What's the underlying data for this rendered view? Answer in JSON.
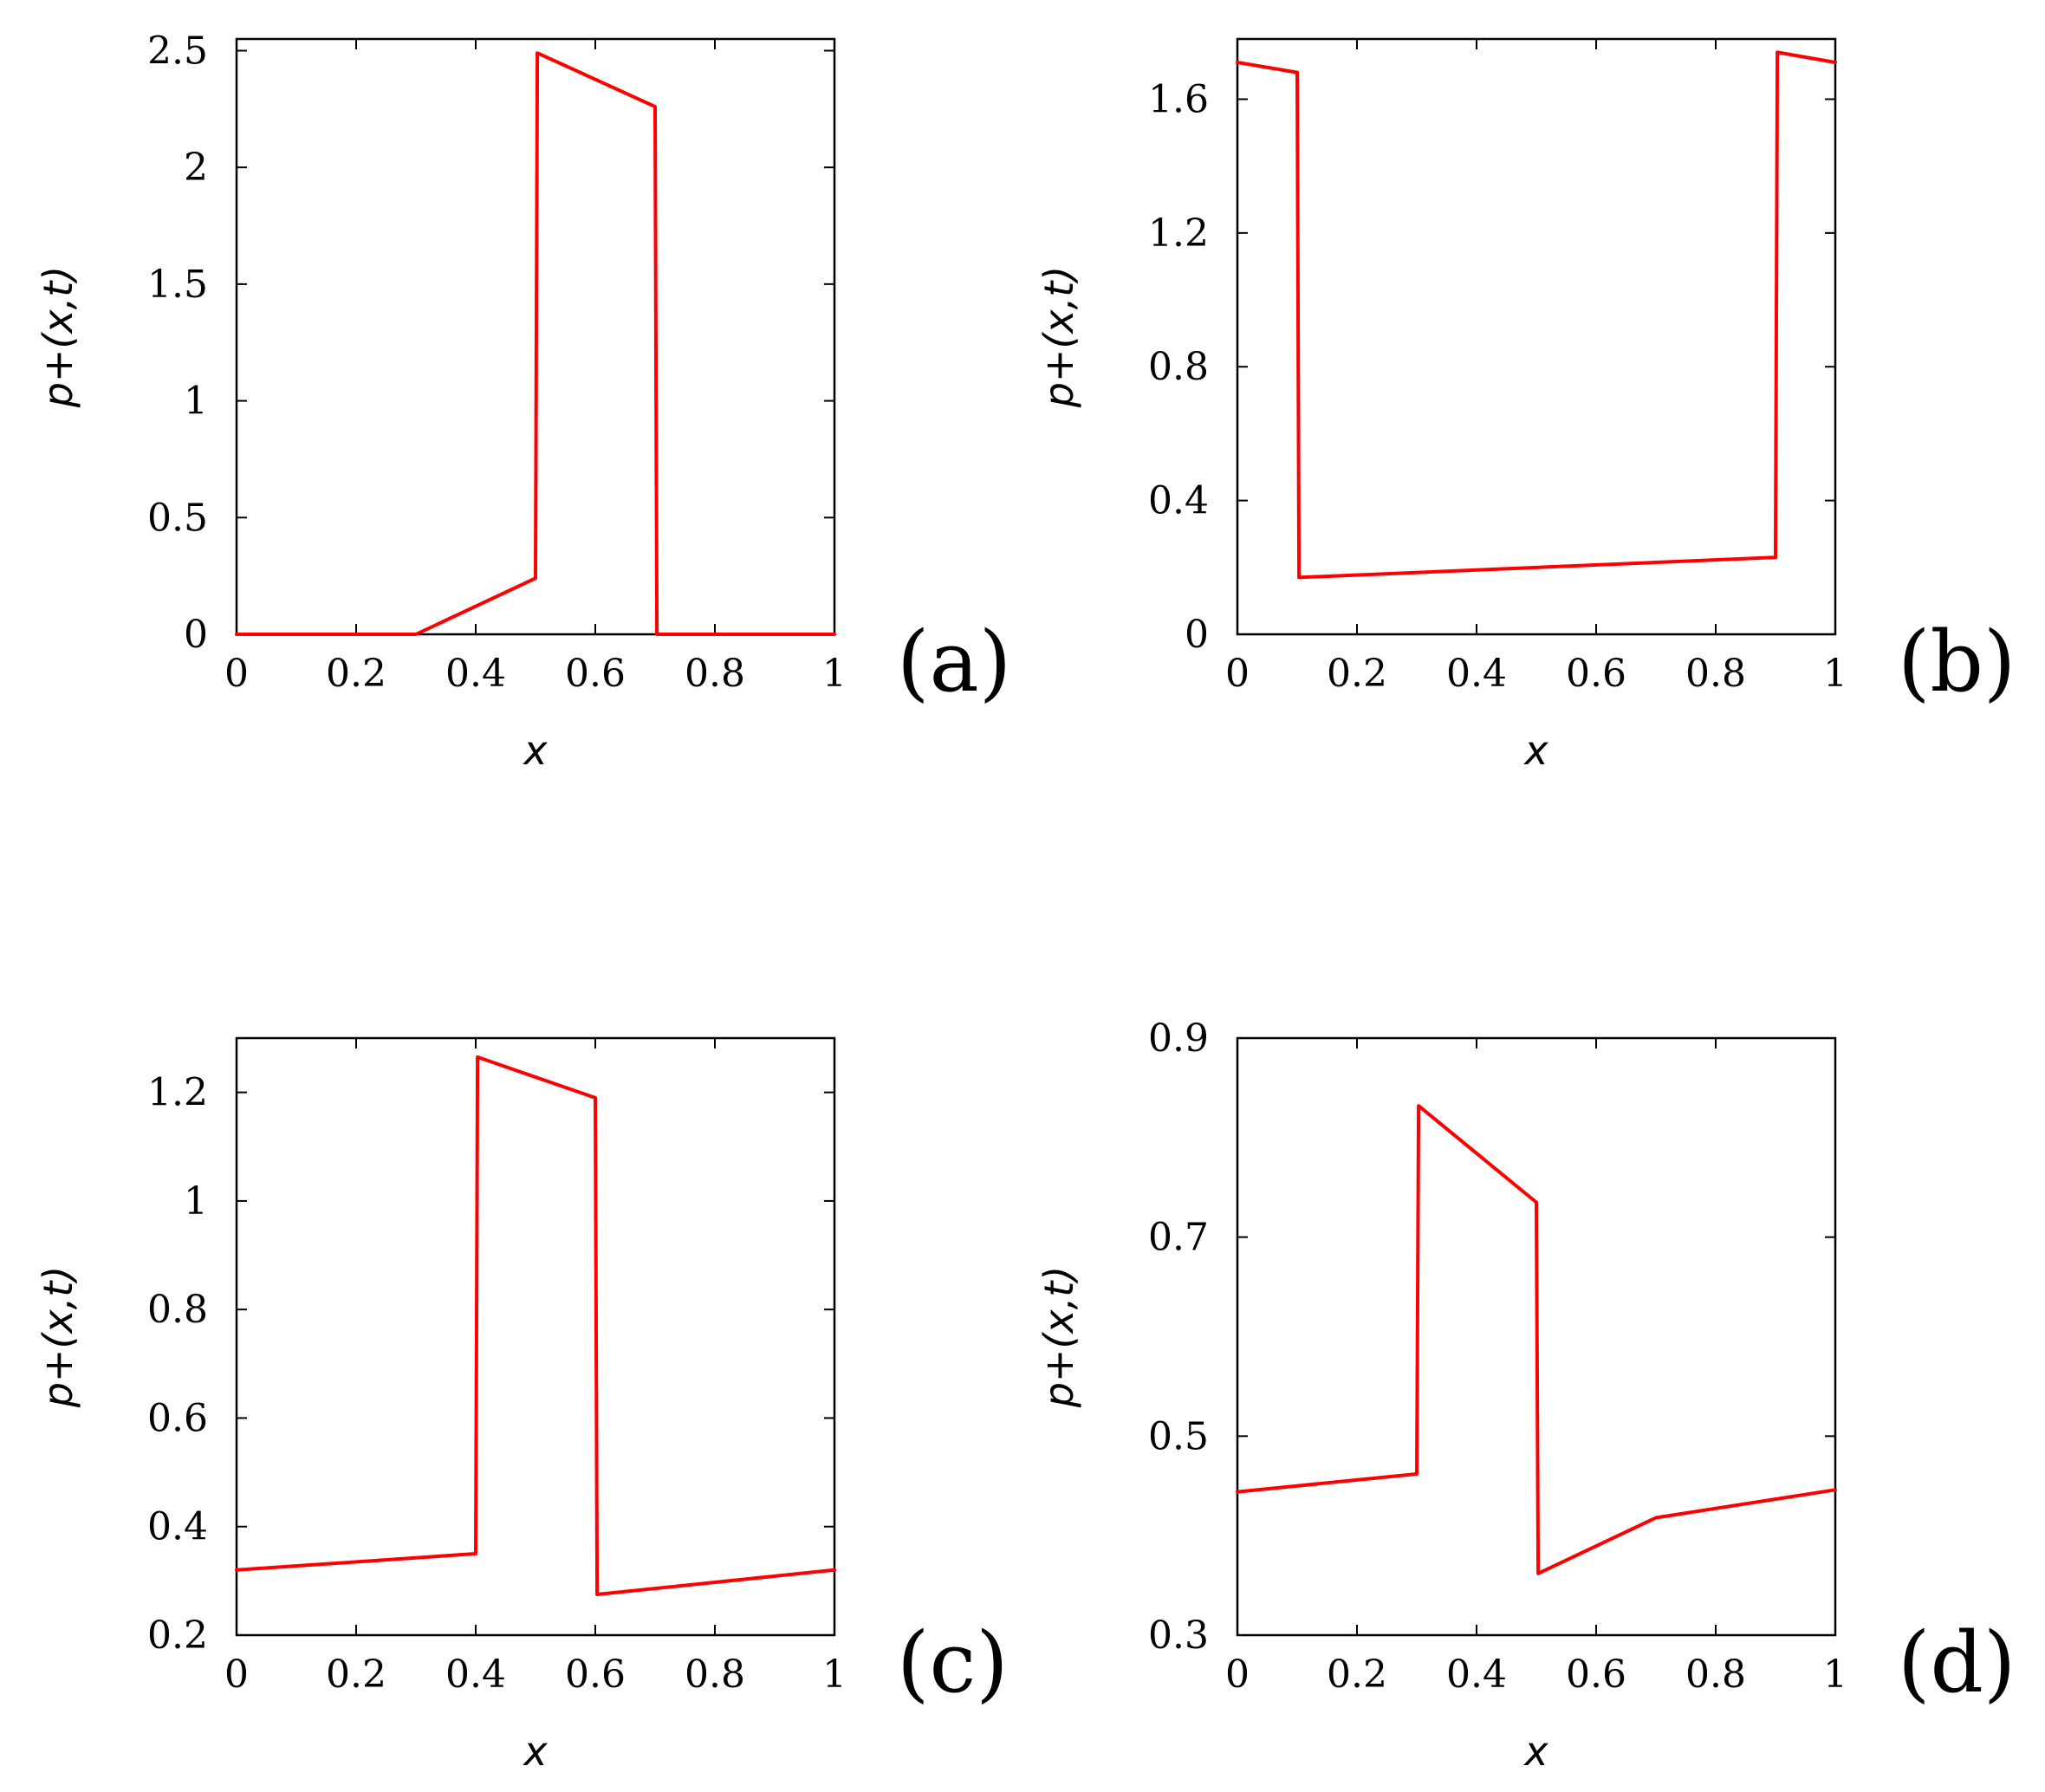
{
  "style": {
    "line_color": "#ff0000",
    "frame_color": "#000000",
    "background": "#ffffff"
  },
  "chart_data": [
    {
      "type": "line",
      "panel_label": "(a)",
      "xlabel": "x",
      "ylabel": "p+(x,t)",
      "xlim": [
        0,
        1
      ],
      "ylim": [
        0,
        2.55
      ],
      "xticks": [
        0,
        0.2,
        0.4,
        0.6,
        0.8,
        1
      ],
      "xtick_labels": [
        "0",
        "0.2",
        "0.4",
        "0.6",
        "0.8",
        "1"
      ],
      "yticks": [
        0,
        0.5,
        1,
        1.5,
        2,
        2.5
      ],
      "ytick_labels": [
        "0",
        "0.5",
        "1",
        "1.5",
        "2",
        "2.5"
      ],
      "grid": false,
      "series": [
        {
          "x": [
            0,
            0.3,
            0.5,
            0.503,
            0.7,
            0.703,
            1
          ],
          "y": [
            0,
            0,
            0.24,
            2.49,
            2.26,
            0,
            0
          ]
        }
      ]
    },
    {
      "type": "line",
      "panel_label": "(b)",
      "xlabel": "x",
      "ylabel": "p+(x,t)",
      "xlim": [
        0,
        1
      ],
      "ylim": [
        0,
        1.78
      ],
      "xticks": [
        0,
        0.2,
        0.4,
        0.6,
        0.8,
        1
      ],
      "xtick_labels": [
        "0",
        "0.2",
        "0.4",
        "0.6",
        "0.8",
        "1"
      ],
      "yticks": [
        0,
        0.4,
        0.8,
        1.2,
        1.6
      ],
      "ytick_labels": [
        "0",
        "0.4",
        "0.8",
        "1.2",
        "1.6"
      ],
      "grid": false,
      "series": [
        {
          "x": [
            0,
            0.1,
            0.103,
            0.9,
            0.903,
            1
          ],
          "y": [
            1.71,
            1.68,
            0.17,
            0.23,
            1.74,
            1.71
          ]
        }
      ]
    },
    {
      "type": "line",
      "panel_label": "(c)",
      "xlabel": "x",
      "ylabel": "p+(x,t)",
      "xlim": [
        0,
        1
      ],
      "ylim": [
        0.2,
        1.3
      ],
      "xticks": [
        0,
        0.2,
        0.4,
        0.6,
        0.8,
        1
      ],
      "xtick_labels": [
        "0",
        "0.2",
        "0.4",
        "0.6",
        "0.8",
        "1"
      ],
      "yticks": [
        0.2,
        0.4,
        0.6,
        0.8,
        1,
        1.2
      ],
      "ytick_labels": [
        "0.2",
        "0.4",
        "0.6",
        "0.8",
        "1",
        "1.2"
      ],
      "grid": false,
      "series": [
        {
          "x": [
            0,
            0.4,
            0.403,
            0.6,
            0.603,
            1
          ],
          "y": [
            0.32,
            0.35,
            1.265,
            1.19,
            0.275,
            0.32
          ]
        }
      ]
    },
    {
      "type": "line",
      "panel_label": "(d)",
      "xlabel": "x",
      "ylabel": "p+(x,t)",
      "xlim": [
        0,
        1
      ],
      "ylim": [
        0.3,
        0.9
      ],
      "xticks": [
        0,
        0.2,
        0.4,
        0.6,
        0.8,
        1
      ],
      "xtick_labels": [
        "0",
        "0.2",
        "0.4",
        "0.6",
        "0.8",
        "1"
      ],
      "yticks": [
        0.3,
        0.5,
        0.7,
        0.9
      ],
      "ytick_labels": [
        "0.3",
        "0.5",
        "0.7",
        "0.9"
      ],
      "grid": false,
      "series": [
        {
          "x": [
            0,
            0.3,
            0.303,
            0.5,
            0.503,
            0.7,
            1
          ],
          "y": [
            0.444,
            0.462,
            0.832,
            0.735,
            0.362,
            0.418,
            0.446
          ]
        }
      ]
    }
  ]
}
